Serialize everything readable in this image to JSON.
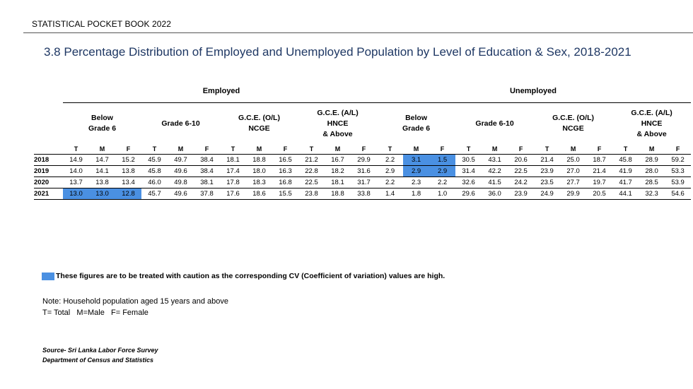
{
  "header": "STATISTICAL POCKET BOOK 2022",
  "title": "3.8 Percentage Distribution of  Employed and Unemployed Population by  Level of  Education & Sex, 2018-2021",
  "groups": {
    "employed": "Employed",
    "unemployed": "Unemployed"
  },
  "categories": [
    "Below\nGrade 6",
    "Grade 6-10",
    "G.C.E. (O/L)\nNCGE",
    "G.C.E. (A/L)\nHNCE\n& Above",
    "Below\nGrade 6",
    "Grade 6-10",
    "G.C.E. (O/L)\nNCGE",
    "G.C.E. (A/L)\nHNCE\n& Above"
  ],
  "sub_headers": [
    "T",
    "M",
    "F",
    "T",
    "M",
    "F",
    "T",
    "M",
    "F",
    "T",
    "M",
    "F",
    "T",
    "M",
    "F",
    "T",
    "M",
    "F",
    "T",
    "M",
    "F",
    "T",
    "M",
    "F"
  ],
  "rows": [
    {
      "year": "2018",
      "values": [
        "14.9",
        "14.7",
        "15.2",
        "45.9",
        "49.7",
        "38.4",
        "18.1",
        "18.8",
        "16.5",
        "21.2",
        "16.7",
        "29.9",
        "2.2",
        "3.1",
        "1.5",
        "30.5",
        "43.1",
        "20.6",
        "21.4",
        "25.0",
        "18.7",
        "45.8",
        "28.9",
        "59.2"
      ],
      "caution": [
        13,
        14
      ]
    },
    {
      "year": "2019",
      "values": [
        "14.0",
        "14.1",
        "13.8",
        "45.8",
        "49.6",
        "38.4",
        "17.4",
        "18.0",
        "16.3",
        "22.8",
        "18.2",
        "31.6",
        "2.9",
        "2.9",
        "2.9",
        "31.4",
        "42.2",
        "22.5",
        "23.9",
        "27.0",
        "21.4",
        "41.9",
        "28.0",
        "53.3"
      ],
      "caution": [
        13,
        14
      ]
    },
    {
      "year": "2020",
      "values": [
        "13.7",
        "13.8",
        "13.4",
        "46.0",
        "49.8",
        "38.1",
        "17.8",
        "18.3",
        "16.8",
        "22.5",
        "18.1",
        "31.7",
        "2.2",
        "2.3",
        "2.2",
        "32.6",
        "41.5",
        "24.2",
        "23.5",
        "27.7",
        "19.7",
        "41.7",
        "28.5",
        "53.9"
      ],
      "caution": []
    },
    {
      "year": "2021",
      "values": [
        "13.0",
        "13.0",
        "12.8",
        "45.7",
        "49.6",
        "37.8",
        "17.6",
        "18.6",
        "15.5",
        "23.8",
        "18.8",
        "33.8",
        "1.4",
        "1.8",
        "1.0",
        "29.6",
        "36.0",
        "23.9",
        "24.9",
        "29.9",
        "20.5",
        "44.1",
        "32.3",
        "54.6"
      ],
      "caution": [
        0,
        1,
        2
      ]
    }
  ],
  "legend": "These figures are to be treated with caution as the corresponding CV (Coefficient of variation) values are high.",
  "note": {
    "line1": "Note: Household population aged 15 years and above",
    "line2": "T= Total   M=Male   F= Female"
  },
  "source": {
    "line1": "Source- Sri Lanka Labor Force Survey",
    "line2": "Department of Census and Statistics"
  },
  "colors": {
    "caution_highlight": "#4a90e2",
    "title": "#1f3864"
  }
}
